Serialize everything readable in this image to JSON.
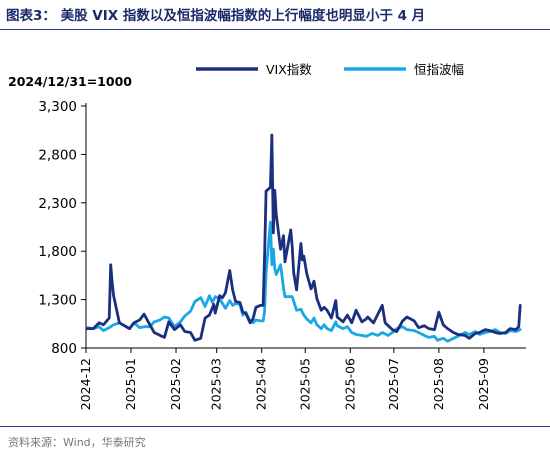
{
  "figure": {
    "title": "图表3：  美股 VIX 指数以及恒指波幅指数的上行幅度也明显小于 4 月",
    "source": "资料来源：Wind，华泰研究"
  },
  "chart_data": {
    "type": "line",
    "base_note": "2024/12/31=1000",
    "ylim": [
      800,
      3300
    ],
    "yticks": [
      800,
      1300,
      1800,
      2300,
      2800,
      3300
    ],
    "ytick_labels": [
      "800",
      "1,300",
      "1,800",
      "2,300",
      "2,800",
      "3,300"
    ],
    "xlim": [
      "2024-12-01",
      "2025-09-30"
    ],
    "xticks": [
      "2024-12",
      "2025-01",
      "2025-02",
      "2025-03",
      "2025-04",
      "2025-05",
      "2025-06",
      "2025-07",
      "2025-08",
      "2025-09"
    ],
    "grid": false,
    "legend_position": "top",
    "series": [
      {
        "name": "VIX指数",
        "color": "#1b2f7e",
        "points": [
          [
            "2024-12-02",
            1000
          ],
          [
            "2024-12-06",
            1000
          ],
          [
            "2024-12-10",
            1060
          ],
          [
            "2024-12-13",
            1040
          ],
          [
            "2024-12-17",
            1110
          ],
          [
            "2024-12-18",
            1660
          ],
          [
            "2024-12-19",
            1480
          ],
          [
            "2024-12-20",
            1340
          ],
          [
            "2024-12-24",
            1060
          ],
          [
            "2024-12-31",
            1000
          ],
          [
            "2025-01-03",
            1060
          ],
          [
            "2025-01-07",
            1090
          ],
          [
            "2025-01-10",
            1150
          ],
          [
            "2025-01-14",
            1040
          ],
          [
            "2025-01-17",
            960
          ],
          [
            "2025-01-21",
            930
          ],
          [
            "2025-01-24",
            910
          ],
          [
            "2025-01-27",
            1070
          ],
          [
            "2025-01-31",
            990
          ],
          [
            "2025-02-04",
            1040
          ],
          [
            "2025-02-07",
            970
          ],
          [
            "2025-02-11",
            960
          ],
          [
            "2025-02-14",
            880
          ],
          [
            "2025-02-18",
            900
          ],
          [
            "2025-02-21",
            1110
          ],
          [
            "2025-02-24",
            1140
          ],
          [
            "2025-02-27",
            1250
          ],
          [
            "2025-02-28",
            1160
          ],
          [
            "2025-03-03",
            1340
          ],
          [
            "2025-03-05",
            1320
          ],
          [
            "2025-03-07",
            1370
          ],
          [
            "2025-03-10",
            1600
          ],
          [
            "2025-03-12",
            1400
          ],
          [
            "2025-03-14",
            1280
          ],
          [
            "2025-03-17",
            1270
          ],
          [
            "2025-03-19",
            1170
          ],
          [
            "2025-03-21",
            1160
          ],
          [
            "2025-03-24",
            1060
          ],
          [
            "2025-03-26",
            1100
          ],
          [
            "2025-03-28",
            1220
          ],
          [
            "2025-03-31",
            1240
          ],
          [
            "2025-04-02",
            1240
          ],
          [
            "2025-04-03",
            1760
          ],
          [
            "2025-04-04",
            2420
          ],
          [
            "2025-04-07",
            2460
          ],
          [
            "2025-04-08",
            3000
          ],
          [
            "2025-04-09",
            1990
          ],
          [
            "2025-04-10",
            2430
          ],
          [
            "2025-04-11",
            2180
          ],
          [
            "2025-04-14",
            1820
          ],
          [
            "2025-04-16",
            1960
          ],
          [
            "2025-04-17",
            1690
          ],
          [
            "2025-04-21",
            2020
          ],
          [
            "2025-04-22",
            1850
          ],
          [
            "2025-04-23",
            1580
          ],
          [
            "2025-04-25",
            1400
          ],
          [
            "2025-04-28",
            1880
          ],
          [
            "2025-04-29",
            1710
          ],
          [
            "2025-04-30",
            1750
          ],
          [
            "2025-05-02",
            1570
          ],
          [
            "2025-05-05",
            1410
          ],
          [
            "2025-05-07",
            1490
          ],
          [
            "2025-05-09",
            1310
          ],
          [
            "2025-05-12",
            1190
          ],
          [
            "2025-05-14",
            1220
          ],
          [
            "2025-05-16",
            1190
          ],
          [
            "2025-05-19",
            1110
          ],
          [
            "2025-05-22",
            1290
          ],
          [
            "2025-05-23",
            1120
          ],
          [
            "2025-05-27",
            1070
          ],
          [
            "2025-05-30",
            1140
          ],
          [
            "2025-06-02",
            1060
          ],
          [
            "2025-06-05",
            1190
          ],
          [
            "2025-06-09",
            1070
          ],
          [
            "2025-06-12",
            1100
          ],
          [
            "2025-06-13",
            1120
          ],
          [
            "2025-06-17",
            1060
          ],
          [
            "2025-06-20",
            1150
          ],
          [
            "2025-06-23",
            1240
          ],
          [
            "2025-06-25",
            1060
          ],
          [
            "2025-06-30",
            990
          ],
          [
            "2025-07-03",
            970
          ],
          [
            "2025-07-07",
            1080
          ],
          [
            "2025-07-10",
            1120
          ],
          [
            "2025-07-15",
            1080
          ],
          [
            "2025-07-18",
            1010
          ],
          [
            "2025-07-22",
            1030
          ],
          [
            "2025-07-25",
            1000
          ],
          [
            "2025-07-29",
            990
          ],
          [
            "2025-07-31",
            1110
          ],
          [
            "2025-08-01",
            1170
          ],
          [
            "2025-08-04",
            1040
          ],
          [
            "2025-08-07",
            1000
          ],
          [
            "2025-08-11",
            960
          ],
          [
            "2025-08-14",
            940
          ],
          [
            "2025-08-19",
            930
          ],
          [
            "2025-08-22",
            900
          ],
          [
            "2025-08-26",
            950
          ],
          [
            "2025-08-29",
            960
          ],
          [
            "2025-09-02",
            990
          ],
          [
            "2025-09-05",
            980
          ],
          [
            "2025-09-09",
            960
          ],
          [
            "2025-09-12",
            950
          ],
          [
            "2025-09-16",
            960
          ],
          [
            "2025-09-19",
            1000
          ],
          [
            "2025-09-23",
            990
          ],
          [
            "2025-09-25",
            1020
          ],
          [
            "2025-09-26",
            1240
          ]
        ]
      },
      {
        "name": "恒指波幅",
        "color": "#1aa7e6",
        "points": [
          [
            "2024-12-02",
            1010
          ],
          [
            "2024-12-06",
            1000
          ],
          [
            "2024-12-10",
            1020
          ],
          [
            "2024-12-13",
            980
          ],
          [
            "2024-12-17",
            1010
          ],
          [
            "2024-12-20",
            1040
          ],
          [
            "2024-12-24",
            1060
          ],
          [
            "2024-12-31",
            1000
          ],
          [
            "2025-01-03",
            1060
          ],
          [
            "2025-01-07",
            1010
          ],
          [
            "2025-01-10",
            1020
          ],
          [
            "2025-01-14",
            1020
          ],
          [
            "2025-01-17",
            1070
          ],
          [
            "2025-01-21",
            1090
          ],
          [
            "2025-01-24",
            1120
          ],
          [
            "2025-01-27",
            1110
          ],
          [
            "2025-01-31",
            1020
          ],
          [
            "2025-02-04",
            1070
          ],
          [
            "2025-02-07",
            1130
          ],
          [
            "2025-02-11",
            1180
          ],
          [
            "2025-02-14",
            1280
          ],
          [
            "2025-02-18",
            1320
          ],
          [
            "2025-02-21",
            1230
          ],
          [
            "2025-02-24",
            1340
          ],
          [
            "2025-02-26",
            1270
          ],
          [
            "2025-02-28",
            1330
          ],
          [
            "2025-03-03",
            1310
          ],
          [
            "2025-03-05",
            1260
          ],
          [
            "2025-03-07",
            1210
          ],
          [
            "2025-03-10",
            1290
          ],
          [
            "2025-03-12",
            1240
          ],
          [
            "2025-03-14",
            1260
          ],
          [
            "2025-03-17",
            1250
          ],
          [
            "2025-03-19",
            1140
          ],
          [
            "2025-03-21",
            1170
          ],
          [
            "2025-03-24",
            1080
          ],
          [
            "2025-03-26",
            1060
          ],
          [
            "2025-03-28",
            1090
          ],
          [
            "2025-03-31",
            1080
          ],
          [
            "2025-04-02",
            1080
          ],
          [
            "2025-04-03",
            1180
          ],
          [
            "2025-04-04",
            1580
          ],
          [
            "2025-04-07",
            2100
          ],
          [
            "2025-04-08",
            1660
          ],
          [
            "2025-04-09",
            1820
          ],
          [
            "2025-04-10",
            1620
          ],
          [
            "2025-04-11",
            1560
          ],
          [
            "2025-04-14",
            1660
          ],
          [
            "2025-04-16",
            1420
          ],
          [
            "2025-04-17",
            1330
          ],
          [
            "2025-04-22",
            1330
          ],
          [
            "2025-04-25",
            1190
          ],
          [
            "2025-04-28",
            1200
          ],
          [
            "2025-04-30",
            1140
          ],
          [
            "2025-05-02",
            1100
          ],
          [
            "2025-05-05",
            1060
          ],
          [
            "2025-05-07",
            1110
          ],
          [
            "2025-05-09",
            1040
          ],
          [
            "2025-05-12",
            1000
          ],
          [
            "2025-05-14",
            1040
          ],
          [
            "2025-05-16",
            1000
          ],
          [
            "2025-05-19",
            980
          ],
          [
            "2025-05-22",
            1070
          ],
          [
            "2025-05-23",
            1030
          ],
          [
            "2025-05-27",
            1000
          ],
          [
            "2025-05-30",
            1020
          ],
          [
            "2025-06-02",
            960
          ],
          [
            "2025-06-05",
            940
          ],
          [
            "2025-06-09",
            930
          ],
          [
            "2025-06-12",
            920
          ],
          [
            "2025-06-16",
            950
          ],
          [
            "2025-06-20",
            930
          ],
          [
            "2025-06-23",
            960
          ],
          [
            "2025-06-27",
            930
          ],
          [
            "2025-06-30",
            960
          ],
          [
            "2025-07-03",
            1000
          ],
          [
            "2025-07-07",
            1020
          ],
          [
            "2025-07-10",
            990
          ],
          [
            "2025-07-15",
            980
          ],
          [
            "2025-07-18",
            960
          ],
          [
            "2025-07-22",
            930
          ],
          [
            "2025-07-25",
            910
          ],
          [
            "2025-07-29",
            920
          ],
          [
            "2025-07-31",
            880
          ],
          [
            "2025-08-04",
            900
          ],
          [
            "2025-08-07",
            870
          ],
          [
            "2025-08-11",
            900
          ],
          [
            "2025-08-14",
            920
          ],
          [
            "2025-08-19",
            960
          ],
          [
            "2025-08-22",
            940
          ],
          [
            "2025-08-26",
            970
          ],
          [
            "2025-08-29",
            940
          ],
          [
            "2025-09-02",
            960
          ],
          [
            "2025-09-05",
            970
          ],
          [
            "2025-09-09",
            990
          ],
          [
            "2025-09-12",
            960
          ],
          [
            "2025-09-16",
            950
          ],
          [
            "2025-09-19",
            980
          ],
          [
            "2025-09-23",
            970
          ],
          [
            "2025-09-26",
            990
          ]
        ]
      }
    ]
  }
}
